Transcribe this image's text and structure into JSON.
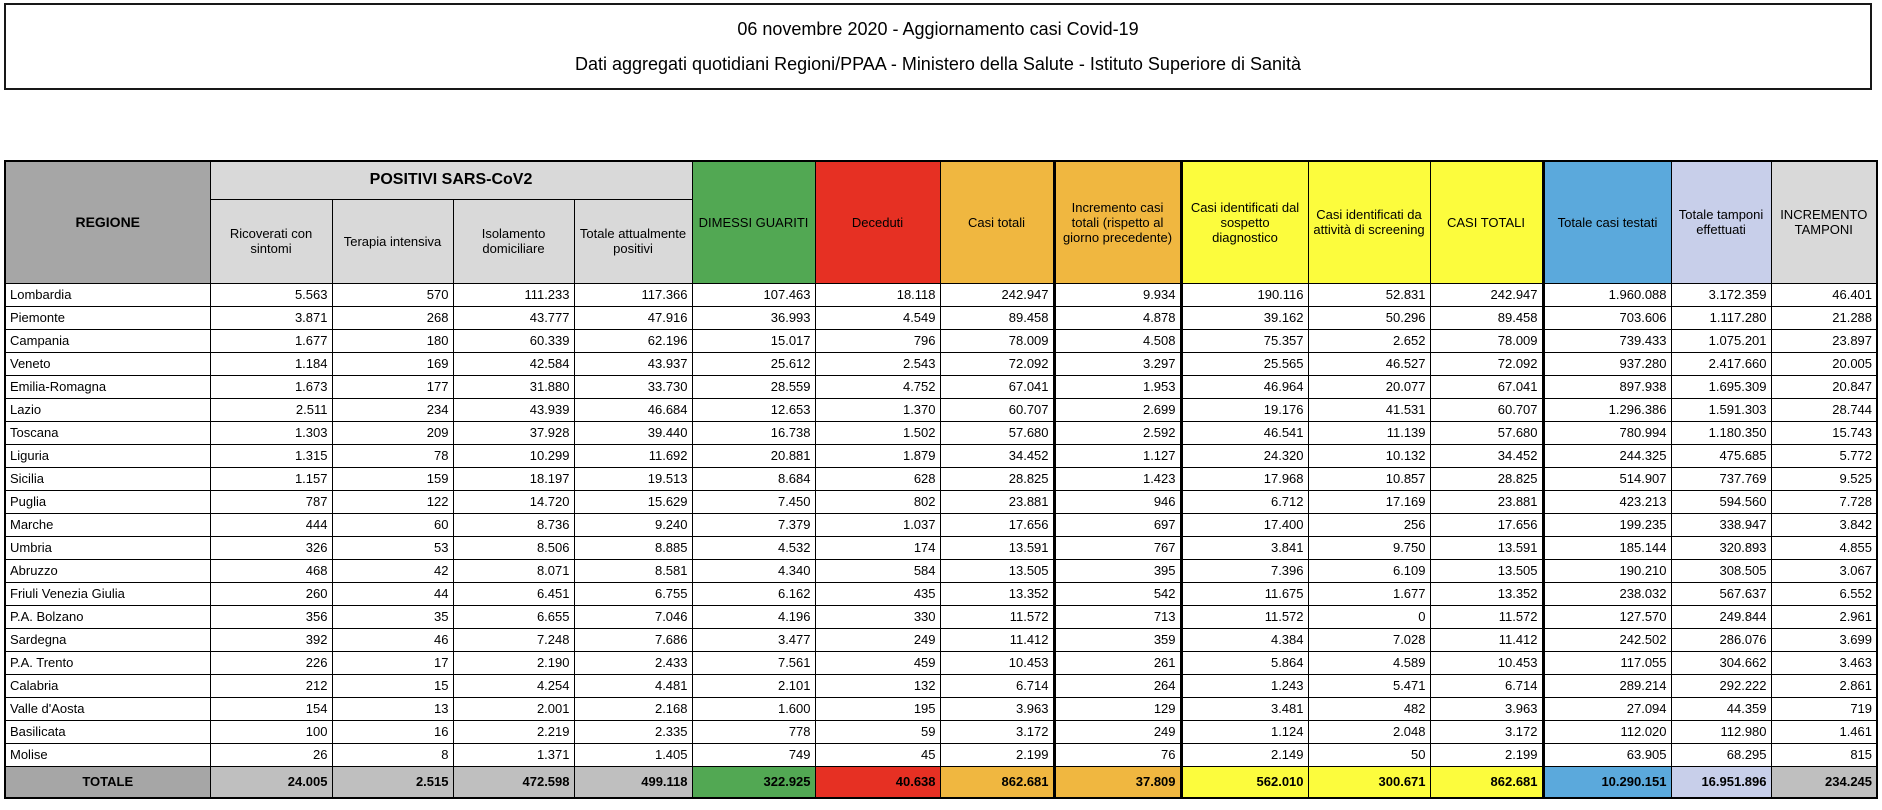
{
  "title": {
    "line1": "06 novembre 2020 - Aggiornamento casi Covid-19",
    "line2": "Dati aggregati quotidiani Regioni/PPAA - Ministero della Salute - Istituto Superiore di Sanità"
  },
  "colors": {
    "header_dark_gray": "#A6A6A6",
    "header_light_gray": "#D9D9D9",
    "totals_gray": "#BFBFBF",
    "green": "#52A853",
    "red": "#E63023",
    "orange": "#F0B740",
    "yellow": "#FCFC3D",
    "blue": "#5BA9DC",
    "lavender": "#C8CFEA"
  },
  "table": {
    "headers": {
      "regione": "REGIONE",
      "positivi_group": "POSITIVI SARS-CoV2",
      "sub": [
        "Ricoverati con sintomi",
        "Terapia intensiva",
        "Isolamento domiciliare",
        "Totale attualmente positivi"
      ],
      "dimessi": "DIMESSI GUARITI",
      "deceduti": "Deceduti",
      "casi_totali": "Casi totali",
      "incremento_casi": "Incremento casi totali (rispetto al giorno precedente)",
      "sospetto": "Casi identificati dal sospetto diagnostico",
      "screening": "Casi identificati da attività di screening",
      "casi_totali_caps": "CASI TOTALI",
      "testati": "Totale casi testati",
      "tamponi": "Totale tamponi effettuati",
      "incremento_tamponi": "INCREMENTO TAMPONI"
    },
    "rows": [
      {
        "regione": "Lombardia",
        "values": [
          "5.563",
          "570",
          "111.233",
          "117.366",
          "107.463",
          "18.118",
          "242.947",
          "9.934",
          "190.116",
          "52.831",
          "242.947",
          "1.960.088",
          "3.172.359",
          "46.401"
        ]
      },
      {
        "regione": "Piemonte",
        "values": [
          "3.871",
          "268",
          "43.777",
          "47.916",
          "36.993",
          "4.549",
          "89.458",
          "4.878",
          "39.162",
          "50.296",
          "89.458",
          "703.606",
          "1.117.280",
          "21.288"
        ]
      },
      {
        "regione": "Campania",
        "values": [
          "1.677",
          "180",
          "60.339",
          "62.196",
          "15.017",
          "796",
          "78.009",
          "4.508",
          "75.357",
          "2.652",
          "78.009",
          "739.433",
          "1.075.201",
          "23.897"
        ]
      },
      {
        "regione": "Veneto",
        "values": [
          "1.184",
          "169",
          "42.584",
          "43.937",
          "25.612",
          "2.543",
          "72.092",
          "3.297",
          "25.565",
          "46.527",
          "72.092",
          "937.280",
          "2.417.660",
          "20.005"
        ]
      },
      {
        "regione": "Emilia-Romagna",
        "values": [
          "1.673",
          "177",
          "31.880",
          "33.730",
          "28.559",
          "4.752",
          "67.041",
          "1.953",
          "46.964",
          "20.077",
          "67.041",
          "897.938",
          "1.695.309",
          "20.847"
        ]
      },
      {
        "regione": "Lazio",
        "values": [
          "2.511",
          "234",
          "43.939",
          "46.684",
          "12.653",
          "1.370",
          "60.707",
          "2.699",
          "19.176",
          "41.531",
          "60.707",
          "1.296.386",
          "1.591.303",
          "28.744"
        ]
      },
      {
        "regione": "Toscana",
        "values": [
          "1.303",
          "209",
          "37.928",
          "39.440",
          "16.738",
          "1.502",
          "57.680",
          "2.592",
          "46.541",
          "11.139",
          "57.680",
          "780.994",
          "1.180.350",
          "15.743"
        ]
      },
      {
        "regione": "Liguria",
        "values": [
          "1.315",
          "78",
          "10.299",
          "11.692",
          "20.881",
          "1.879",
          "34.452",
          "1.127",
          "24.320",
          "10.132",
          "34.452",
          "244.325",
          "475.685",
          "5.772"
        ]
      },
      {
        "regione": "Sicilia",
        "values": [
          "1.157",
          "159",
          "18.197",
          "19.513",
          "8.684",
          "628",
          "28.825",
          "1.423",
          "17.968",
          "10.857",
          "28.825",
          "514.907",
          "737.769",
          "9.525"
        ]
      },
      {
        "regione": "Puglia",
        "values": [
          "787",
          "122",
          "14.720",
          "15.629",
          "7.450",
          "802",
          "23.881",
          "946",
          "6.712",
          "17.169",
          "23.881",
          "423.213",
          "594.560",
          "7.728"
        ]
      },
      {
        "regione": "Marche",
        "values": [
          "444",
          "60",
          "8.736",
          "9.240",
          "7.379",
          "1.037",
          "17.656",
          "697",
          "17.400",
          "256",
          "17.656",
          "199.235",
          "338.947",
          "3.842"
        ]
      },
      {
        "regione": "Umbria",
        "values": [
          "326",
          "53",
          "8.506",
          "8.885",
          "4.532",
          "174",
          "13.591",
          "767",
          "3.841",
          "9.750",
          "13.591",
          "185.144",
          "320.893",
          "4.855"
        ]
      },
      {
        "regione": "Abruzzo",
        "values": [
          "468",
          "42",
          "8.071",
          "8.581",
          "4.340",
          "584",
          "13.505",
          "395",
          "7.396",
          "6.109",
          "13.505",
          "190.210",
          "308.505",
          "3.067"
        ]
      },
      {
        "regione": "Friuli Venezia Giulia",
        "values": [
          "260",
          "44",
          "6.451",
          "6.755",
          "6.162",
          "435",
          "13.352",
          "542",
          "11.675",
          "1.677",
          "13.352",
          "238.032",
          "567.637",
          "6.552"
        ]
      },
      {
        "regione": "P.A. Bolzano",
        "values": [
          "356",
          "35",
          "6.655",
          "7.046",
          "4.196",
          "330",
          "11.572",
          "713",
          "11.572",
          "0",
          "11.572",
          "127.570",
          "249.844",
          "2.961"
        ]
      },
      {
        "regione": "Sardegna",
        "values": [
          "392",
          "46",
          "7.248",
          "7.686",
          "3.477",
          "249",
          "11.412",
          "359",
          "4.384",
          "7.028",
          "11.412",
          "242.502",
          "286.076",
          "3.699"
        ]
      },
      {
        "regione": "P.A. Trento",
        "values": [
          "226",
          "17",
          "2.190",
          "2.433",
          "7.561",
          "459",
          "10.453",
          "261",
          "5.864",
          "4.589",
          "10.453",
          "117.055",
          "304.662",
          "3.463"
        ]
      },
      {
        "regione": "Calabria",
        "values": [
          "212",
          "15",
          "4.254",
          "4.481",
          "2.101",
          "132",
          "6.714",
          "264",
          "1.243",
          "5.471",
          "6.714",
          "289.214",
          "292.222",
          "2.861"
        ]
      },
      {
        "regione": "Valle d'Aosta",
        "values": [
          "154",
          "13",
          "2.001",
          "2.168",
          "1.600",
          "195",
          "3.963",
          "129",
          "3.481",
          "482",
          "3.963",
          "27.094",
          "44.359",
          "719"
        ]
      },
      {
        "regione": "Basilicata",
        "values": [
          "100",
          "16",
          "2.219",
          "2.335",
          "778",
          "59",
          "3.172",
          "249",
          "1.124",
          "2.048",
          "3.172",
          "112.020",
          "112.980",
          "1.461"
        ]
      },
      {
        "regione": "Molise",
        "values": [
          "26",
          "8",
          "1.371",
          "1.405",
          "749",
          "45",
          "2.199",
          "76",
          "2.149",
          "50",
          "2.199",
          "63.905",
          "68.295",
          "815"
        ]
      }
    ],
    "totale": {
      "label": "TOTALE",
      "values": [
        "24.005",
        "2.515",
        "472.598",
        "499.118",
        "322.925",
        "40.638",
        "862.681",
        "37.809",
        "562.010",
        "300.671",
        "862.681",
        "10.290.151",
        "16.951.896",
        "234.245"
      ]
    }
  }
}
